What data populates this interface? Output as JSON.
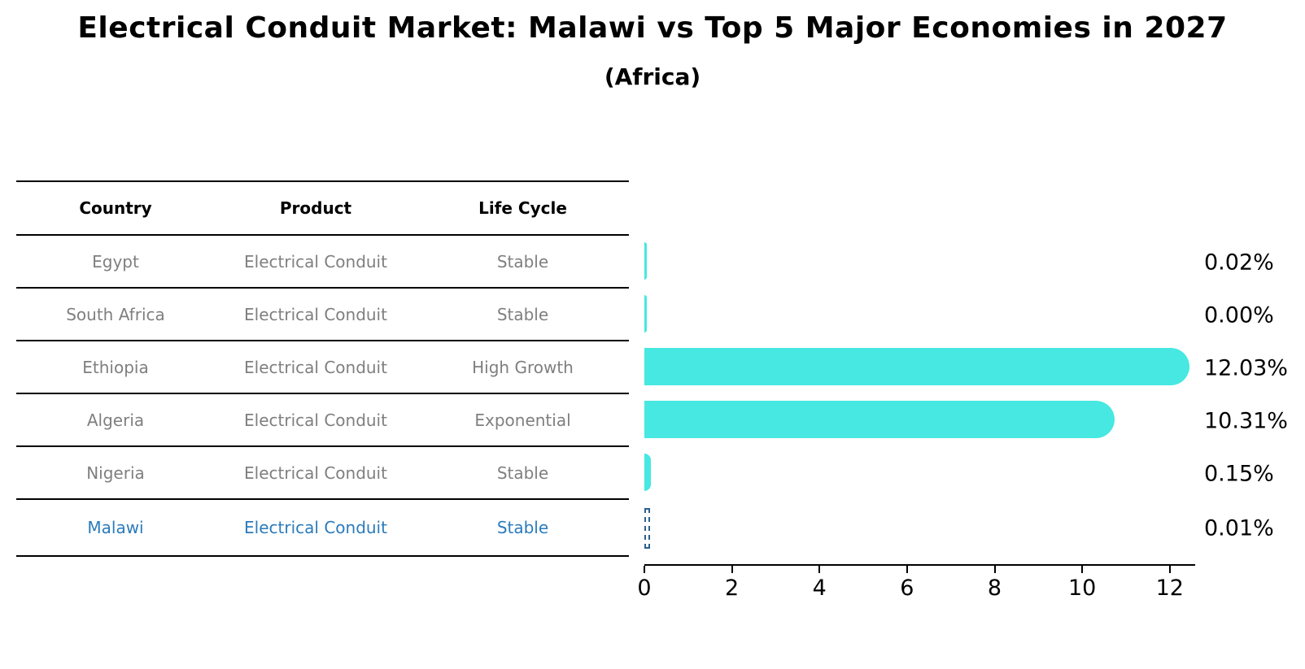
{
  "title": "Electrical Conduit Market: Malawi vs Top 5 Major Economies in 2027",
  "subtitle": "(Africa)",
  "table": {
    "headers": [
      "Country",
      "Product",
      "Life Cycle"
    ],
    "rows": [
      {
        "country": "Egypt",
        "product": "Electrical Conduit",
        "life_cycle": "Stable",
        "highlighted": false
      },
      {
        "country": "South Africa",
        "product": "Electrical Conduit",
        "life_cycle": "Stable",
        "highlighted": false
      },
      {
        "country": "Ethiopia",
        "product": "Electrical Conduit",
        "life_cycle": "High Growth",
        "highlighted": false
      },
      {
        "country": "Algeria",
        "product": "Electrical Conduit",
        "life_cycle": "Exponential",
        "highlighted": false
      },
      {
        "country": "Nigeria",
        "product": "Electrical Conduit",
        "life_cycle": "Stable",
        "highlighted": false
      },
      {
        "country": "Malawi",
        "product": "Electrical Conduit",
        "life_cycle": "Stable",
        "highlighted": true
      }
    ]
  },
  "chart_data": {
    "type": "bar",
    "orientation": "horizontal",
    "categories": [
      "Egypt",
      "South Africa",
      "Ethiopia",
      "Algeria",
      "Nigeria",
      "Malawi"
    ],
    "values": [
      0.02,
      0.0,
      12.03,
      10.31,
      0.15,
      0.01
    ],
    "value_labels": [
      "0.02%",
      "0.00%",
      "12.03%",
      "10.31%",
      "0.15%",
      "0.01%"
    ],
    "x_ticks": [
      "0",
      "2",
      "4",
      "6",
      "8",
      "10",
      "12"
    ],
    "x_tick_values": [
      0,
      2,
      4,
      6,
      8,
      10,
      12
    ],
    "xlim": [
      0,
      12.58
    ],
    "grid": false,
    "legend": null,
    "bar_color": "#46E8E1",
    "highlight_index": 5,
    "highlight_border_color": "#2c5f8e",
    "title": "Electrical Conduit Market: Malawi vs Top 5 Major Economies in 2027",
    "subtitle": "(Africa)"
  },
  "colors": {
    "row_text": "#7f7f7f",
    "header_text": "#000000",
    "highlight_text": "#2b7bbb",
    "axis": "#000000"
  }
}
